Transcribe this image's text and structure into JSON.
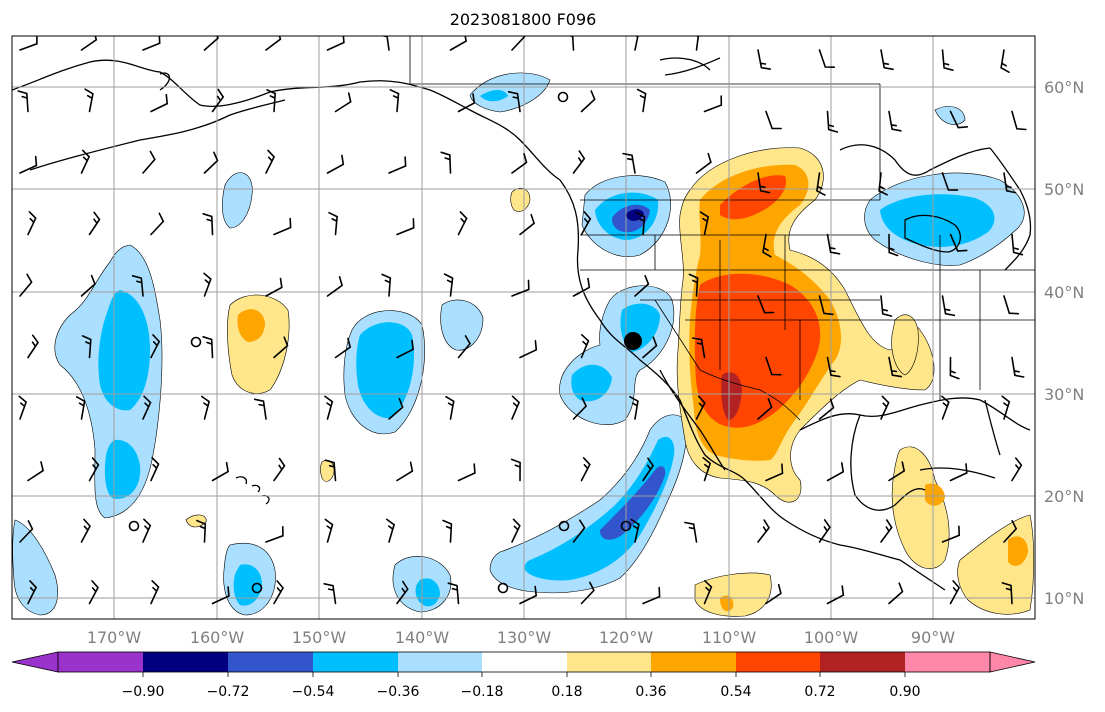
{
  "title": "2023081800 F096",
  "colors": {
    "lt_-0.90": "#9933cc",
    "n090_n072": "#000080",
    "n072_n054": "#3355cc",
    "n054_n036": "#00bfff",
    "n036_n018": "#aadfff",
    "n018_018": "#ffffff",
    "p018_p036": "#ffe68a",
    "p036_p054": "#ffa500",
    "p054_p072": "#ff4500",
    "p072_p090": "#b22222",
    "gt_0.90": "#ff88aa"
  },
  "lon_labels": [
    "170°W",
    "160°W",
    "150°W",
    "140°W",
    "130°W",
    "120°W",
    "110°W",
    "100°W",
    "90°W"
  ],
  "lat_labels": [
    "60°N",
    "50°N",
    "40°N",
    "30°N",
    "20°N",
    "10°N"
  ],
  "colorbar": {
    "ticks": [
      "−0.90",
      "−0.72",
      "−0.54",
      "−0.36",
      "−0.18",
      "0.18",
      "0.36",
      "0.54",
      "0.72",
      "0.90"
    ]
  },
  "icons": {
    "wind_barbs": "wind-barb-icon",
    "station_marker": "station-dot-icon",
    "calm_circle": "calm-wind-circle-icon"
  }
}
